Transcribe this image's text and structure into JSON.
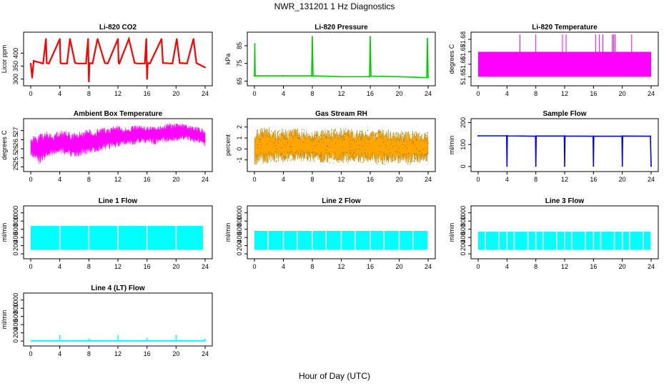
{
  "figure": {
    "title": "NWR_131201  1 Hz Diagnostics",
    "xlabel": "Hour of Day (UTC)"
  },
  "chart_data": [
    {
      "id": "co2",
      "type": "line",
      "title": "Li-820 CO2",
      "ylabel": "Licor ppm",
      "color": "#ff0000",
      "xlim": [
        0,
        24
      ],
      "ylim": [
        285,
        470
      ],
      "xticks": [
        0,
        4,
        8,
        12,
        16,
        20,
        24
      ],
      "yticks": [
        300,
        350,
        400
      ],
      "x": [
        0,
        0.2,
        0.4,
        1.7,
        2.1,
        2.2,
        2.5,
        4.0,
        4.1,
        4.2,
        5.0,
        5.4,
        6.1,
        6.5,
        7.6,
        7.9,
        8.0,
        8.1,
        8.5,
        9.2,
        10.2,
        10.6,
        12.0,
        12.1,
        12.2,
        13.5,
        14.3,
        14.7,
        15.7,
        15.9,
        16.0,
        16.1,
        16.4,
        18.0,
        18.2,
        19.5,
        20.1,
        20.5,
        21.5,
        22.4,
        22.8,
        24.0
      ],
      "y": [
        360,
        305,
        370,
        360,
        455,
        362,
        360,
        455,
        362,
        360,
        360,
        455,
        362,
        360,
        360,
        455,
        290,
        362,
        360,
        455,
        362,
        360,
        455,
        362,
        360,
        455,
        362,
        360,
        360,
        455,
        300,
        362,
        360,
        455,
        362,
        360,
        455,
        362,
        360,
        455,
        362,
        345
      ]
    },
    {
      "id": "pressure",
      "type": "line",
      "title": "Li-820 Pressure",
      "ylabel": "kPa",
      "color": "#00cc00",
      "xlim": [
        0,
        24
      ],
      "ylim": [
        64,
        91
      ],
      "xticks": [
        0,
        4,
        8,
        12,
        16,
        20,
        24
      ],
      "yticks": [
        65,
        75,
        85
      ],
      "x": [
        0,
        0.05,
        0.1,
        4.0,
        7.9,
        8.0,
        8.1,
        12.0,
        15.9,
        16.0,
        16.1,
        16.2,
        20.0,
        23.8,
        23.9,
        24.0
      ],
      "y": [
        68,
        86,
        68,
        68,
        68,
        90,
        68,
        67.5,
        67.5,
        90,
        68,
        67.8,
        67.5,
        67,
        89,
        67
      ]
    },
    {
      "id": "licor-temp",
      "type": "area",
      "title": "Li-820 Temperature",
      "ylabel": "degrees C",
      "color": "#ff00ff",
      "xlim": [
        0,
        24
      ],
      "ylim": [
        51.645,
        51.6835
      ],
      "xticks": [
        0,
        4,
        8,
        12,
        16,
        20,
        24
      ],
      "yticks": [
        51.65,
        51.66,
        51.67,
        51.68
      ],
      "band": [
        51.65,
        51.67
      ],
      "spike_top": 51.684,
      "spikes": [
        5.8,
        8.0,
        11.7,
        12.2,
        16.3,
        16.8,
        17.3,
        18.6,
        18.8,
        19.0,
        21.3
      ]
    },
    {
      "id": "box-temp",
      "type": "area",
      "title": "Ambient Box Temperature",
      "ylabel": "degrees C",
      "color": "#ff00ff",
      "xlim": [
        0,
        24
      ],
      "ylim": [
        24.9,
        27.5
      ],
      "xticks": [
        0,
        4,
        8,
        12,
        16,
        20,
        24
      ],
      "yticks": [
        25.0,
        25.5,
        26.0,
        26.5,
        27.0
      ],
      "x": [
        0,
        1,
        2,
        3,
        4,
        5,
        6,
        7,
        8,
        9,
        10,
        11,
        12,
        13,
        14,
        15,
        16,
        17,
        18,
        19,
        20,
        21,
        22,
        23,
        24
      ],
      "low": [
        25.6,
        25.1,
        25.4,
        25.6,
        25.7,
        25.6,
        25.5,
        25.6,
        25.7,
        25.8,
        25.9,
        26.0,
        26.1,
        26.2,
        26.2,
        26.3,
        26.3,
        26.2,
        26.3,
        26.4,
        26.4,
        26.5,
        26.4,
        26.3,
        26.1
      ],
      "high": [
        26.6,
        26.9,
        27.0,
        26.9,
        27.0,
        27.0,
        26.9,
        27.0,
        27.1,
        27.1,
        27.2,
        27.2,
        27.3,
        27.2,
        27.3,
        27.3,
        27.3,
        27.2,
        27.3,
        27.4,
        27.4,
        27.4,
        27.3,
        27.2,
        27.1
      ]
    },
    {
      "id": "rh",
      "type": "area",
      "title": "Gas Stream RH",
      "ylabel": "percent",
      "color": "#ffa500",
      "xlim": [
        0,
        24
      ],
      "ylim": [
        -1.8,
        2.5
      ],
      "xticks": [
        0,
        4,
        8,
        12,
        16,
        20,
        24
      ],
      "yticks": [
        -1,
        0,
        1,
        2
      ],
      "x": [
        0,
        2,
        4,
        6,
        8,
        10,
        12,
        14,
        16,
        18,
        20,
        22,
        24
      ],
      "low": [
        -1.5,
        -1.3,
        -1.3,
        -1.2,
        -1.2,
        -1.3,
        -1.3,
        -1.2,
        -1.3,
        -1.4,
        -1.3,
        -1.4,
        -1.2
      ],
      "high": [
        1.8,
        2.0,
        1.8,
        1.9,
        1.7,
        1.8,
        1.9,
        1.8,
        1.7,
        1.9,
        1.6,
        1.7,
        1.5
      ]
    },
    {
      "id": "sample-flow",
      "type": "line",
      "title": "Sample Flow",
      "ylabel": "ml/min",
      "color": "#0000ff",
      "xlim": [
        0,
        24
      ],
      "ylim": [
        -10,
        205
      ],
      "xticks": [
        0,
        4,
        8,
        12,
        16,
        20,
        24
      ],
      "yticks": [
        0,
        100,
        200
      ],
      "x": [
        0,
        3.95,
        4.0,
        4.05,
        7.95,
        8.0,
        8.05,
        11.95,
        12.0,
        12.05,
        15.95,
        16.0,
        16.05,
        19.95,
        20.0,
        20.05,
        23.9,
        24.0
      ],
      "y": [
        140,
        140,
        2,
        140,
        138,
        2,
        139,
        139,
        2,
        139,
        138,
        2,
        138,
        138,
        2,
        139,
        138,
        2
      ]
    },
    {
      "id": "line1",
      "type": "area",
      "title": "Line 1 Flow",
      "ylabel": "ml/min",
      "color": "#00ffff",
      "xlim": [
        0,
        24
      ],
      "ylim": [
        -50,
        1100
      ],
      "xticks": [
        0,
        4,
        8,
        12,
        16,
        20,
        24
      ],
      "yticks": [
        0,
        200,
        400,
        600,
        800,
        1000
      ],
      "band": [
        100,
        680
      ],
      "gaps": [
        4.0,
        8.0,
        12.0,
        16.0,
        20.0
      ],
      "end": 23.7
    },
    {
      "id": "line2",
      "type": "area",
      "title": "Line 2 Flow",
      "ylabel": "ml/min",
      "color": "#00ffff",
      "xlim": [
        0,
        24
      ],
      "ylim": [
        -50,
        1100
      ],
      "xticks": [
        0,
        4,
        8,
        12,
        16,
        20,
        24
      ],
      "yticks": [
        0,
        200,
        400,
        600,
        800,
        1000
      ],
      "band": [
        100,
        560
      ],
      "gaps": [
        1.9,
        4.0,
        5.9,
        8.0,
        9.9,
        12.0,
        13.9,
        16.0,
        17.9,
        20.0,
        21.9,
        24.0
      ],
      "end": 24.0
    },
    {
      "id": "line3",
      "type": "area",
      "title": "Line 3 Flow",
      "ylabel": "ml/min",
      "color": "#00ffff",
      "xlim": [
        0,
        24
      ],
      "ylim": [
        -50,
        1100
      ],
      "xticks": [
        0,
        4,
        8,
        12,
        16,
        20,
        24
      ],
      "yticks": [
        0,
        200,
        400,
        600,
        800,
        1000
      ],
      "band": [
        100,
        540
      ],
      "gaps": [
        1.0,
        2.9,
        4.0,
        5.0,
        6.9,
        8.0,
        9.0,
        10.9,
        12.0,
        13.0,
        14.9,
        16.0,
        17.0,
        18.9,
        20.0,
        21.0,
        22.9,
        24.0
      ],
      "end": 24.0
    },
    {
      "id": "line4",
      "type": "line",
      "title": "Line 4 (LT) Flow",
      "ylabel": "ml/min",
      "color": "#00ffff",
      "xlim": [
        0,
        24
      ],
      "ylim": [
        -50,
        1100
      ],
      "xticks": [
        0,
        4,
        8,
        12,
        16,
        20,
        24
      ],
      "yticks": [
        0,
        200,
        400,
        600,
        800,
        1000
      ],
      "baseline": 5,
      "spikes": [
        {
          "x": 4.0,
          "y": 150
        },
        {
          "x": 8.0,
          "y": 60
        },
        {
          "x": 12.0,
          "y": 150
        },
        {
          "x": 16.0,
          "y": 80
        },
        {
          "x": 20.0,
          "y": 150
        },
        {
          "x": 24.0,
          "y": 60
        }
      ]
    }
  ]
}
